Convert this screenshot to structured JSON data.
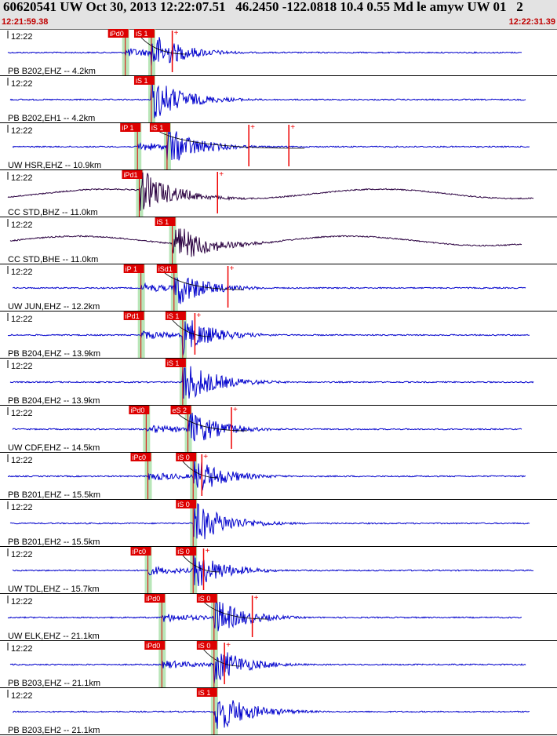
{
  "header": {
    "title": "60620541 UW Oct 30, 2013 12:22:07.51   46.2450 -122.0818 10.4 0.55 Md le amyw UW 01   2",
    "start_time": "12:21:59.38",
    "end_time": "12:22:31.39"
  },
  "colors": {
    "header_bg": "#e3e3e3",
    "time_text": "#c00000",
    "trace_blue": "#0000cc",
    "trace_dark": "#2a0040",
    "pick_box": "#dd0000",
    "pick_bar": "#b8e6b8",
    "amp_red": "#ee0000"
  },
  "time_window": {
    "start": 0,
    "end": 32.01
  },
  "panels": [
    {
      "time_label": "12:22",
      "station": "PB B202,EHZ -- 4.2km",
      "trace_color": "blue",
      "picks": [
        {
          "label": "iPd0",
          "t": 7.2
        },
        {
          "label": "iS 1",
          "t": 8.7
        }
      ],
      "amp_markers": [
        9.9
      ],
      "coda_end": 9.8
    },
    {
      "time_label": "12:22",
      "station": "PB B202,EH1 -- 4.2km",
      "trace_color": "blue",
      "picks": [
        {
          "label": "iS 1",
          "t": 8.7
        }
      ],
      "amp_markers": [],
      "coda_end": null
    },
    {
      "time_label": "12:22",
      "station": "UW HSR,EHZ -- 10.9km",
      "trace_color": "blue",
      "picks": [
        {
          "label": "iP 1",
          "t": 7.9
        },
        {
          "label": "iS 1",
          "t": 9.6
        }
      ],
      "amp_markers": [
        14.3,
        16.6
      ],
      "coda_end": 16.6
    },
    {
      "time_label": "12:22",
      "station": "CC STD,BHZ -- 11.0km",
      "trace_color": "dark",
      "picks": [
        {
          "label": "iPd1",
          "t": 8.0
        }
      ],
      "amp_markers": [
        12.5
      ],
      "coda_end": 12.5
    },
    {
      "time_label": "12:22",
      "station": "CC STD,BHE -- 11.0km",
      "trace_color": "dark",
      "picks": [
        {
          "label": "iS 1",
          "t": 9.9
        }
      ],
      "amp_markers": [],
      "coda_end": null
    },
    {
      "time_label": "12:22",
      "station": "UW JUN,EHZ -- 12.2km",
      "trace_color": "blue",
      "picks": [
        {
          "label": "iP 1",
          "t": 8.1
        },
        {
          "label": "iSd1",
          "t": 10.0
        }
      ],
      "amp_markers": [
        13.1
      ],
      "coda_end": 13.1
    },
    {
      "time_label": "12:22",
      "station": "PB B204,EHZ -- 13.9km",
      "trace_color": "blue",
      "picks": [
        {
          "label": "iPd1",
          "t": 8.1
        },
        {
          "label": "iS 1",
          "t": 10.5
        }
      ],
      "amp_markers": [
        11.2
      ],
      "coda_end": 11.2
    },
    {
      "time_label": "12:22",
      "station": "PB B204,EH2 -- 13.9km",
      "trace_color": "blue",
      "picks": [
        {
          "label": "iS 1",
          "t": 10.5
        }
      ],
      "amp_markers": [],
      "coda_end": null
    },
    {
      "time_label": "12:22",
      "station": "UW CDF,EHZ -- 14.5km",
      "trace_color": "blue",
      "picks": [
        {
          "label": "iPd0",
          "t": 8.4
        },
        {
          "label": "eS 2",
          "t": 10.8
        }
      ],
      "amp_markers": [
        13.3
      ],
      "coda_end": 13.3
    },
    {
      "time_label": "12:22",
      "station": "PB B201,EHZ -- 15.5km",
      "trace_color": "blue",
      "picks": [
        {
          "label": "iPc0",
          "t": 8.5
        },
        {
          "label": "iS 0",
          "t": 11.1
        }
      ],
      "amp_markers": [
        11.6
      ],
      "coda_end": 11.6
    },
    {
      "time_label": "12:22",
      "station": "PB B201,EH2 -- 15.5km",
      "trace_color": "blue",
      "picks": [
        {
          "label": "iS 0",
          "t": 11.1
        }
      ],
      "amp_markers": [],
      "coda_end": null
    },
    {
      "time_label": "12:22",
      "station": "UW TDL,EHZ -- 15.7km",
      "trace_color": "blue",
      "picks": [
        {
          "label": "iPc0",
          "t": 8.5
        },
        {
          "label": "iS 0",
          "t": 11.1
        }
      ],
      "amp_markers": [
        11.7
      ],
      "coda_end": 11.7
    },
    {
      "time_label": "12:22",
      "station": "UW ELK,EHZ -- 21.1km",
      "trace_color": "blue",
      "picks": [
        {
          "label": "iPd0",
          "t": 9.3
        },
        {
          "label": "iS 0",
          "t": 12.3
        }
      ],
      "amp_markers": [
        14.5
      ],
      "coda_end": 14.5
    },
    {
      "time_label": "12:22",
      "station": "PB B203,EHZ -- 21.1km",
      "trace_color": "blue",
      "picks": [
        {
          "label": "iPd0",
          "t": 9.3
        },
        {
          "label": "iS 0",
          "t": 12.3
        }
      ],
      "amp_markers": [
        12.9
      ],
      "coda_end": 12.9
    },
    {
      "time_label": "12:22",
      "station": "PB B203,EH2 -- 21.1km",
      "trace_color": "blue",
      "picks": [
        {
          "label": "iS 1",
          "t": 12.3
        }
      ],
      "amp_markers": [],
      "coda_end": null
    }
  ]
}
